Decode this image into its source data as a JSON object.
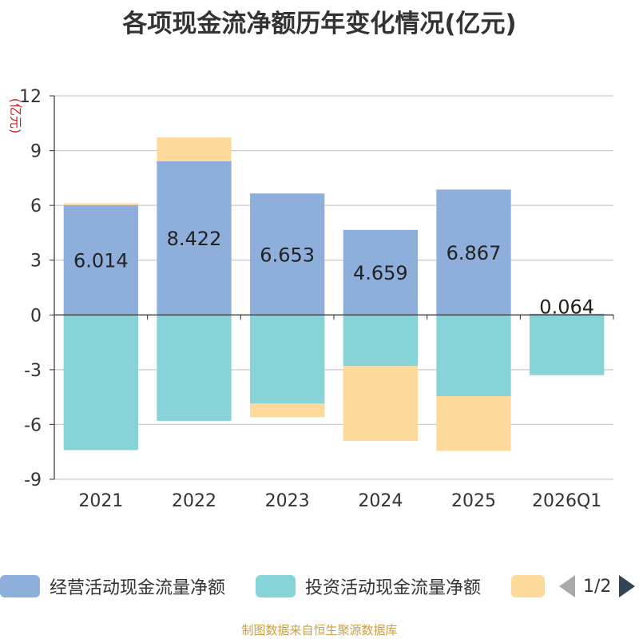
{
  "chart_data": {
    "type": "bar",
    "stacked": true,
    "title": "各项现金流净额历年变化情况(亿元)",
    "ylabel": "(亿元)",
    "categories": [
      "2021",
      "2022",
      "2023",
      "2024",
      "2025",
      "2026Q1"
    ],
    "ylim": [
      -9,
      12
    ],
    "yticks": [
      12,
      9,
      6,
      3,
      0,
      -3,
      -6,
      -9
    ],
    "series": [
      {
        "name": "经营活动现金流量净额",
        "color": "#8eaedb",
        "values": [
          6.014,
          8.422,
          6.653,
          4.659,
          6.867,
          0.064
        ],
        "labels": [
          "6.014",
          "8.422",
          "6.653",
          "4.659",
          "6.867",
          "0.064"
        ]
      },
      {
        "name": "投资活动现金流量净额",
        "color": "#86d4d8",
        "values": [
          -7.4,
          -5.8,
          -4.85,
          -2.8,
          -4.45,
          -3.3
        ]
      },
      {
        "name": "",
        "color": "#fdd99a",
        "values": [
          0.1,
          1.3,
          -0.75,
          -4.1,
          -3.0,
          0
        ]
      }
    ],
    "grid": true,
    "legend_position": "bottom"
  },
  "legend": {
    "pager_text": "1/2"
  },
  "source": "制图数据来自恒生聚源数据库"
}
